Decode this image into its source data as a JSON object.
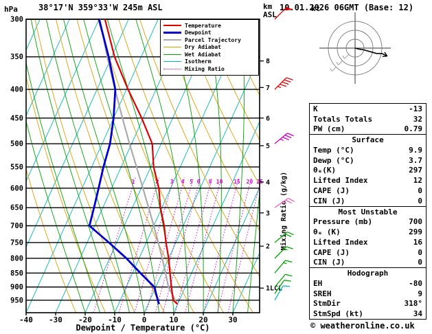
{
  "header": {
    "pressure_unit": "hPa",
    "coords_title": "38°17'N 359°33'W 245m ASL",
    "km_label": "km",
    "asl_label": "ASL",
    "datetime_title": "10.01.2026 06GMT (Base: 12)"
  },
  "axes": {
    "xlabel": "Dewpoint / Temperature (°C)",
    "mixing_ratio_axis_label": "Mixing Ratio (g/kg)"
  },
  "legend": [
    {
      "label": "Temperature",
      "color": "#dd0000",
      "width": 2.5,
      "dash": false
    },
    {
      "label": "Dewpoint",
      "color": "#0000cc",
      "width": 3,
      "dash": false
    },
    {
      "label": "Parcel Trajectory",
      "color": "#aaaaaa",
      "width": 2.5,
      "dash": false
    },
    {
      "label": "Dry Adiabat",
      "color": "#e09e00",
      "width": 1.5,
      "dash": false
    },
    {
      "label": "Wet Adiabat",
      "color": "#00a400",
      "width": 1.5,
      "dash": false
    },
    {
      "label": "Isotherm",
      "color": "#00b8b8",
      "width": 1.5,
      "dash": false
    },
    {
      "label": "Mixing Ratio",
      "color": "#dd00dd",
      "width": 1.5,
      "dash": true
    }
  ],
  "chart_data": {
    "type": "skewt_log_p_sounding",
    "pressure_axis_hPa": [
      300,
      350,
      400,
      450,
      500,
      550,
      600,
      650,
      700,
      750,
      800,
      850,
      900,
      950
    ],
    "temp_axis_C": [
      -40,
      -30,
      -20,
      -10,
      0,
      10,
      20,
      30
    ],
    "pressure_range_hPa": [
      300,
      1000
    ],
    "km_asl_ticks": [
      {
        "label": "8",
        "p_hPa": 356
      },
      {
        "label": "7",
        "p_hPa": 397
      },
      {
        "label": "6",
        "p_hPa": 450
      },
      {
        "label": "5",
        "p_hPa": 504
      },
      {
        "label": "4",
        "p_hPa": 585
      },
      {
        "label": "3",
        "p_hPa": 664
      },
      {
        "label": "2",
        "p_hPa": 761
      },
      {
        "label": "1LCL",
        "p_hPa": 904
      }
    ],
    "mixing_ratio_lines_gkg": [
      1,
      2,
      3,
      4,
      5,
      6,
      8,
      10,
      15,
      20,
      25
    ],
    "sounding": {
      "levels_hPa": [
        965,
        950,
        900,
        850,
        800,
        750,
        700,
        650,
        600,
        550,
        500,
        450,
        400,
        350,
        300
      ],
      "temperature_C": [
        9.9,
        7.9,
        5.3,
        2.7,
        0.0,
        -3.3,
        -6.5,
        -10.5,
        -14.0,
        -19.0,
        -23.0,
        -30.5,
        -39.5,
        -49.0,
        -58.0
      ],
      "dewpoint_C": [
        3.7,
        2.7,
        -0.5,
        -7.3,
        -14.3,
        -22.6,
        -31.8,
        -33.0,
        -34.4,
        -36.0,
        -37.3,
        -40.0,
        -43.8,
        -51.0,
        -60.0
      ],
      "parcel_C": [
        9.9,
        8.6,
        4.3,
        1.2,
        -2.2,
        -5.9,
        -10.0,
        -14.5,
        -19.4,
        -24.8,
        -30.7,
        -37.0,
        -43.9,
        -51.5,
        -59.7
      ]
    },
    "wind_barbs": [
      {
        "p_hPa": 300,
        "speed_kt": 50,
        "dir_deg": 45,
        "color": "#dd0000"
      },
      {
        "p_hPa": 400,
        "speed_kt": 45,
        "dir_deg": 45,
        "color": "#dd0000"
      },
      {
        "p_hPa": 500,
        "speed_kt": 35,
        "dir_deg": 50,
        "color": "#cc00cc"
      },
      {
        "p_hPa": 650,
        "speed_kt": 25,
        "dir_deg": 55,
        "color": "#ee66bb"
      },
      {
        "p_hPa": 750,
        "speed_kt": 20,
        "dir_deg": 50,
        "color": "#00a400"
      },
      {
        "p_hPa": 800,
        "speed_kt": 15,
        "dir_deg": 45,
        "color": "#00a400"
      },
      {
        "p_hPa": 850,
        "speed_kt": 15,
        "dir_deg": 40,
        "color": "#00a400"
      },
      {
        "p_hPa": 900,
        "speed_kt": 10,
        "dir_deg": 40,
        "color": "#00a400"
      },
      {
        "p_hPa": 925,
        "speed_kt": 10,
        "dir_deg": 35,
        "color": "#00a400"
      },
      {
        "p_hPa": 950,
        "speed_kt": 10,
        "dir_deg": 30,
        "color": "#00b8b8"
      }
    ],
    "hodograph": {
      "unit": "kt",
      "rings_kt": [
        10,
        20,
        30
      ],
      "trace_uv_kt": [
        [
          0,
          0
        ],
        [
          4,
          -1
        ],
        [
          10,
          -2
        ],
        [
          17,
          -4
        ],
        [
          24,
          -6
        ],
        [
          30,
          -6
        ],
        [
          36,
          -9
        ]
      ]
    }
  },
  "indices": {
    "top": [
      {
        "label": "K",
        "value": "-13"
      },
      {
        "label": "Totals Totals",
        "value": "32"
      },
      {
        "label": "PW (cm)",
        "value": "0.79"
      }
    ],
    "surface": {
      "title": "Surface",
      "rows": [
        [
          "Temp (°C)",
          "9.9"
        ],
        [
          "Dewp (°C)",
          "3.7"
        ],
        [
          "θₑ(K)",
          "297"
        ],
        [
          "Lifted Index",
          "12"
        ],
        [
          "CAPE (J)",
          "0"
        ],
        [
          "CIN (J)",
          "0"
        ]
      ]
    },
    "most_unstable": {
      "title": "Most Unstable",
      "rows": [
        [
          "Pressure (mb)",
          "700"
        ],
        [
          "θₑ (K)",
          "299"
        ],
        [
          "Lifted Index",
          "16"
        ],
        [
          "CAPE (J)",
          "0"
        ],
        [
          "CIN (J)",
          "0"
        ]
      ]
    },
    "hodograph": {
      "title": "Hodograph",
      "rows": [
        [
          "EH",
          "-80"
        ],
        [
          "SREH",
          "9"
        ],
        [
          "StmDir",
          "318°"
        ],
        [
          "StmSpd (kt)",
          "34"
        ]
      ]
    }
  },
  "footer": {
    "credit": "© weatheronline.co.uk"
  }
}
